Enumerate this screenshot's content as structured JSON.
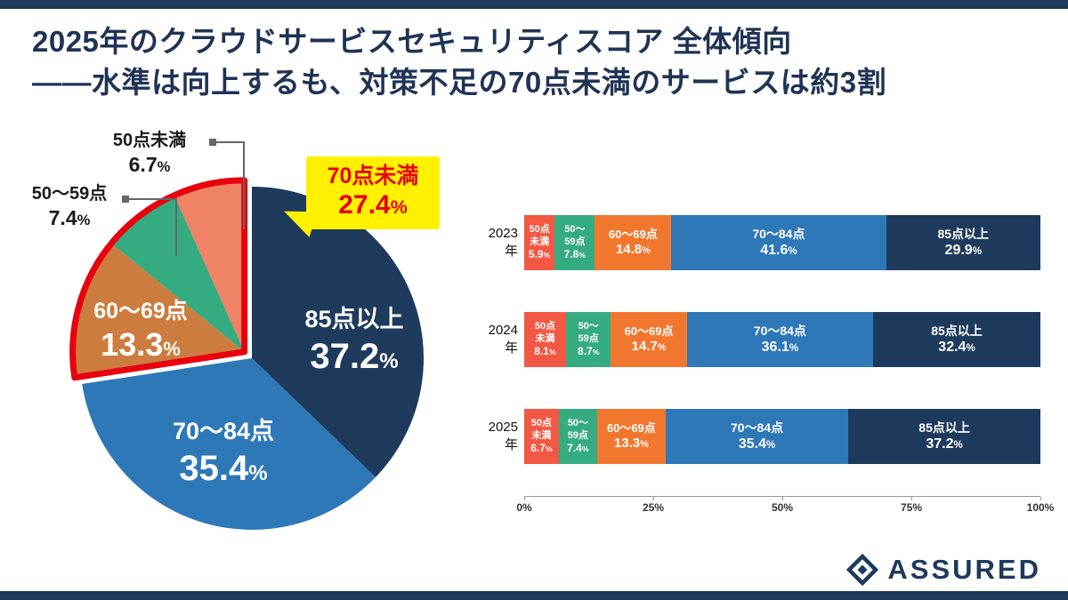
{
  "slide": {
    "title_line1": "2025年のクラウドサービスセキュリティスコア 全体傾向",
    "title_line2": "——水準は向上するも、対策不足の70点未満のサービスは約3割"
  },
  "colors": {
    "navy": "#1e3a5c",
    "title_navy": "#1f3354",
    "blue": "#2e78b8",
    "orange_pie": "#cc7c3e",
    "orange_bar": "#f2772e",
    "green": "#35ab80",
    "salmon_pie": "#f08266",
    "red_bar": "#f25843",
    "highlight_red": "#e8000d",
    "callout_yellow": "#fff100",
    "callout_text_red": "#e60012",
    "connector_gray": "#666666"
  },
  "chart_data": [
    {
      "type": "pie",
      "unit": "%",
      "direction": "clockwise",
      "start_angle": "top",
      "segments": [
        {
          "label": "85点以上",
          "value": 37.2,
          "color_key": "navy"
        },
        {
          "label": "70〜84点",
          "value": 35.4,
          "color_key": "blue"
        },
        {
          "label": "60〜69点",
          "value": 13.3,
          "color_key": "orange_pie"
        },
        {
          "label": "50〜59点",
          "value": 7.4,
          "color_key": "green"
        },
        {
          "label": "50点未満",
          "value": 6.7,
          "color_key": "salmon_pie"
        }
      ],
      "callout": {
        "label": "70点未満",
        "value": 27.4,
        "note": "60〜69点+50〜59点+50点未満 outlined in red"
      }
    },
    {
      "type": "bar",
      "orientation": "horizontal-stacked",
      "unit": "%",
      "categories": [
        "2023年",
        "2024年",
        "2025年"
      ],
      "series": [
        {
          "name": "50点未満",
          "wrap": [
            "50点",
            "未満"
          ],
          "color_key": "red_bar",
          "values": [
            5.9,
            8.1,
            6.7
          ]
        },
        {
          "name": "50〜59点",
          "wrap": [
            "50〜",
            "59点"
          ],
          "color_key": "green",
          "values": [
            7.8,
            8.7,
            7.4
          ]
        },
        {
          "name": "60〜69点",
          "wrap": [
            "60〜69点"
          ],
          "color_key": "orange_bar",
          "values": [
            14.8,
            14.7,
            13.3
          ]
        },
        {
          "name": "70〜84点",
          "wrap": [
            "70〜84点"
          ],
          "color_key": "blue",
          "values": [
            41.6,
            36.1,
            35.4
          ]
        },
        {
          "name": "85点以上",
          "wrap": [
            "85点以上"
          ],
          "color_key": "navy",
          "values": [
            29.9,
            32.4,
            37.2
          ]
        }
      ],
      "x_ticks": [
        "0%",
        "25%",
        "50%",
        "75%",
        "100%"
      ],
      "xlim": [
        0,
        100
      ]
    }
  ],
  "logo": {
    "text": "ASSURED"
  }
}
